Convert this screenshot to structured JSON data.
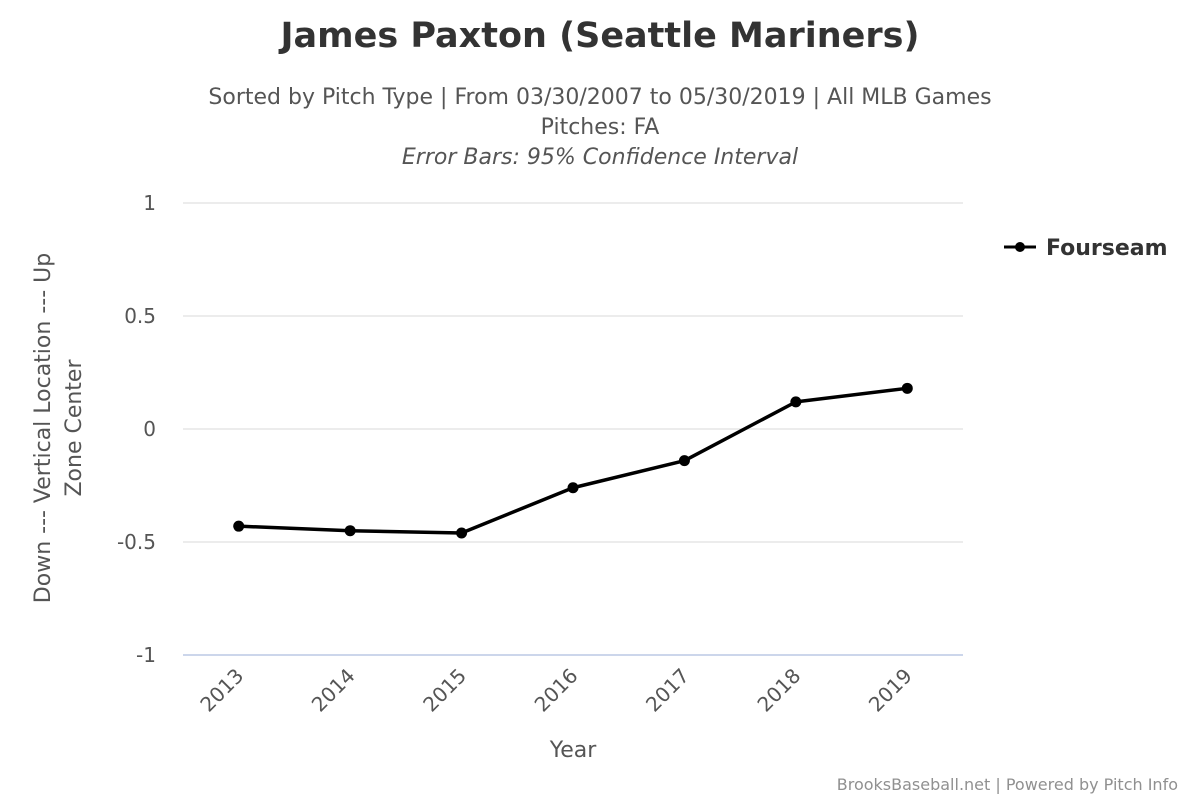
{
  "chart_data": {
    "type": "line",
    "title": "James Paxton (Seattle Mariners)",
    "subtitle_lines": [
      "Sorted by Pitch Type | From 03/30/2007 to 05/30/2019 | All MLB Games",
      "Pitches: FA"
    ],
    "subtitle_note": "Error Bars: 95% Confidence Interval",
    "xlabel": "Year",
    "ylabel_lines": [
      "Down --- Vertical Location --- Up",
      "Zone Center"
    ],
    "categories": [
      "2013",
      "2014",
      "2015",
      "2016",
      "2017",
      "2018",
      "2019"
    ],
    "y_ticks": [
      {
        "value": 1,
        "label": "1"
      },
      {
        "value": 0.5,
        "label": "0.5"
      },
      {
        "value": 0,
        "label": "0"
      },
      {
        "value": -0.5,
        "label": "-0.5"
      },
      {
        "value": -1,
        "label": "-1"
      }
    ],
    "ylim": [
      -1,
      1
    ],
    "grid": true,
    "legend_position": "top-right",
    "series": [
      {
        "name": "Fourseam",
        "color": "#000000",
        "values": [
          -0.43,
          -0.45,
          -0.46,
          -0.26,
          -0.14,
          0.12,
          0.18
        ]
      }
    ],
    "credits": "BrooksBaseball.net | Powered by Pitch Info"
  }
}
